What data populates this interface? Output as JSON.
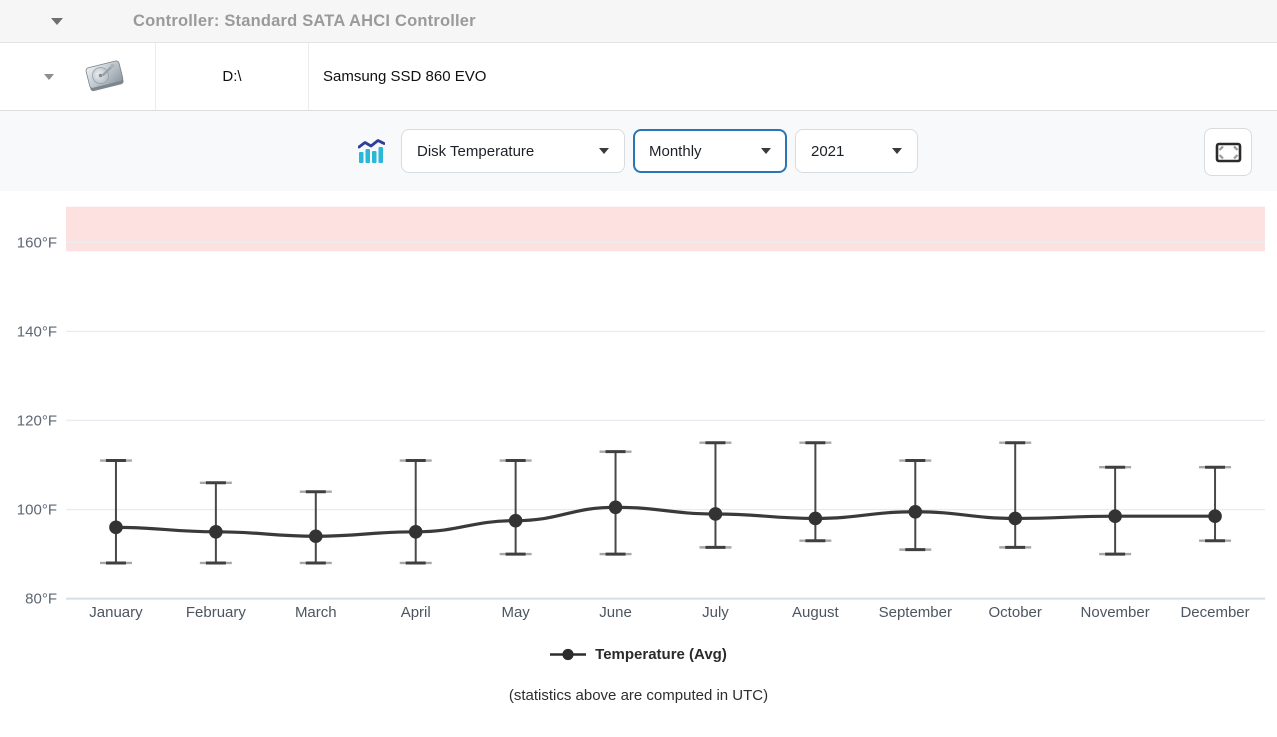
{
  "header": {
    "title": "Controller: Standard SATA AHCI Controller"
  },
  "disk_row": {
    "drive_letter": "D:\\",
    "model": "Samsung SSD 860 EVO",
    "icon": "hard-disk-icon"
  },
  "toolbar": {
    "chart_icon": "stats-chart-icon",
    "metric_select": {
      "value": "Disk Temperature"
    },
    "period_select": {
      "value": "Monthly"
    },
    "year_select": {
      "value": "2021"
    },
    "fullscreen_icon": "fullscreen-icon"
  },
  "chart_data": {
    "type": "line",
    "title": "",
    "categories": [
      "January",
      "February",
      "March",
      "April",
      "May",
      "June",
      "July",
      "August",
      "September",
      "October",
      "November",
      "December"
    ],
    "series": [
      {
        "name": "Temperature (Avg)",
        "values": [
          96,
          95,
          94,
          95,
          97.5,
          100.5,
          99,
          98,
          99.5,
          98,
          98.5,
          98.5
        ],
        "max": [
          111,
          106,
          104,
          111,
          111,
          113,
          115,
          115,
          111,
          115,
          109.5,
          109.5
        ],
        "min": [
          88,
          88,
          88,
          88,
          90,
          90,
          91.5,
          93,
          91,
          91.5,
          90,
          93
        ]
      }
    ],
    "unit": "°F",
    "yticks": [
      160,
      140,
      120,
      100,
      80
    ],
    "ylim": [
      80,
      168
    ],
    "warning_zone": {
      "from": 158,
      "to": 168,
      "color": "#fce1e0"
    },
    "grid": true,
    "legend_position": "bottom",
    "colors": {
      "series": "#3a3a3a",
      "point": "#333333",
      "gridline": "#e9edf2",
      "axis_line": "#d7dee8",
      "tick_label": "#5d6673",
      "category_label": "#4d5560"
    }
  },
  "footer": {
    "note": "(statistics above are computed in UTC)"
  }
}
